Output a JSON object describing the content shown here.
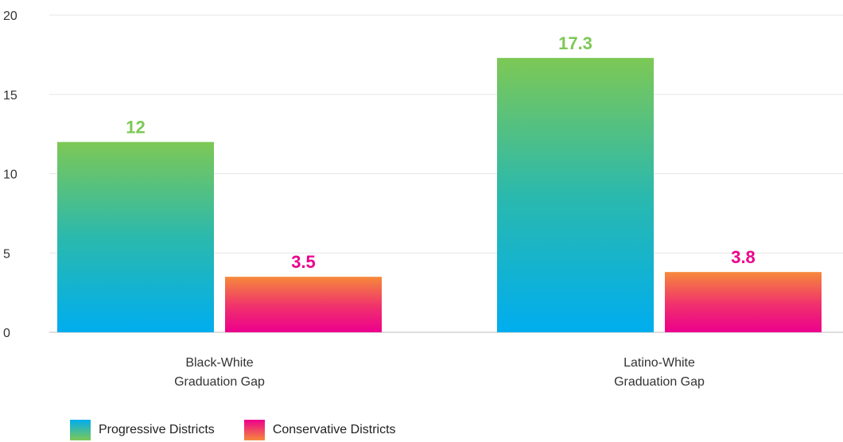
{
  "chart_data": {
    "type": "bar",
    "categories": [
      [
        "Black-White",
        "Graduation Gap"
      ],
      [
        "Latino-White",
        "Graduation Gap"
      ]
    ],
    "series": [
      {
        "name": "Progressive Districts",
        "values": [
          12,
          17.3
        ],
        "label_color": "#7dc855",
        "gradient": [
          "#7dc855",
          "#00adee"
        ]
      },
      {
        "name": "Conservative Districts",
        "values": [
          3.5,
          3.8
        ],
        "label_color": "#ec008c",
        "gradient": [
          "#f6893a",
          "#ec008c"
        ]
      }
    ],
    "value_labels": [
      [
        "12",
        "17.3"
      ],
      [
        "3.5",
        "3.8"
      ]
    ],
    "ylim": [
      0,
      20
    ],
    "yticks": [
      0,
      5,
      10,
      15,
      20
    ],
    "grid": true,
    "legend_position": "bottom-left",
    "title": "",
    "xlabel": "",
    "ylabel": ""
  },
  "legend": {
    "items": [
      {
        "label": "Progressive Districts"
      },
      {
        "label": "Conservative Districts"
      }
    ]
  }
}
